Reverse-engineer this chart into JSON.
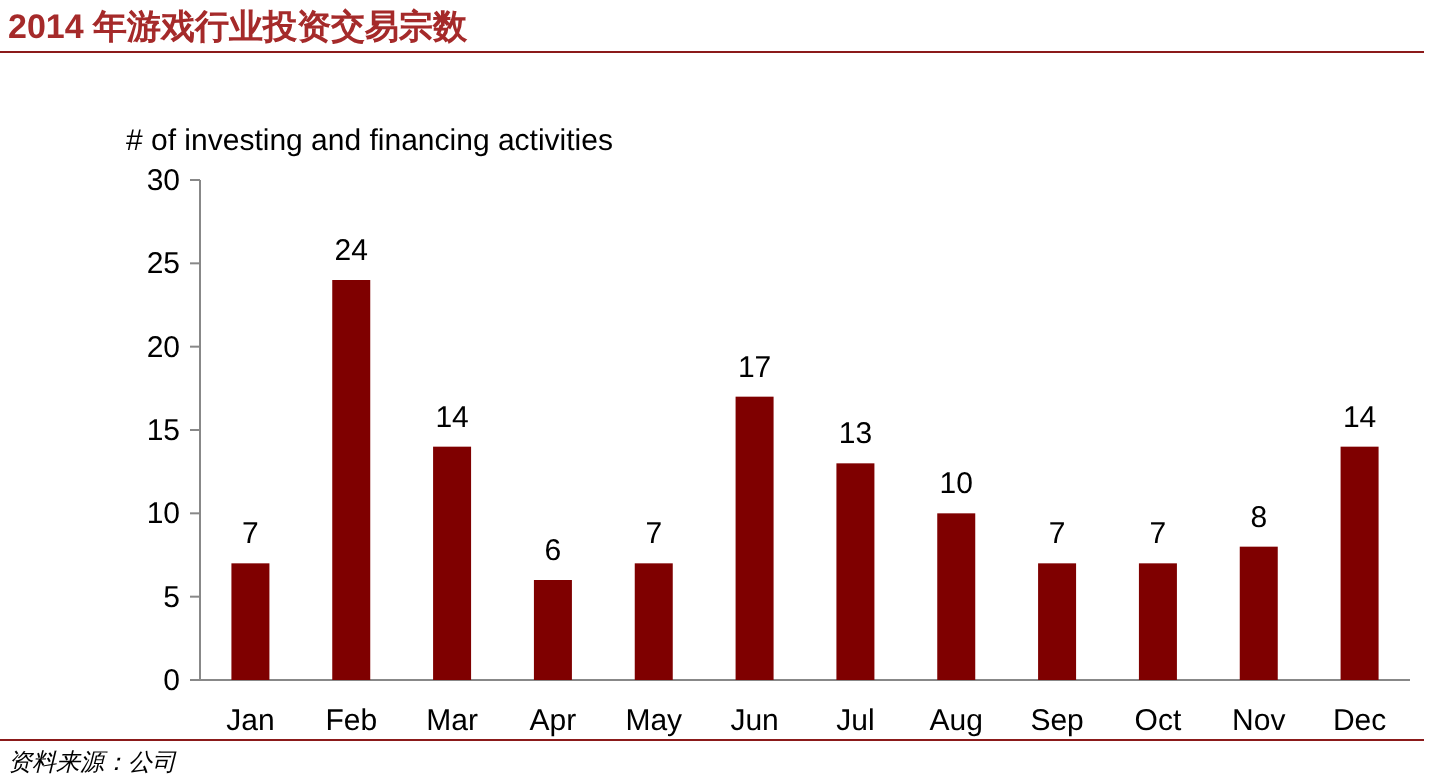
{
  "chart_data": {
    "type": "bar",
    "title": "2014 年游戏行业投资交易宗数",
    "ylabel": "# of investing and financing activities",
    "categories": [
      "Jan",
      "Feb",
      "Mar",
      "Apr",
      "May",
      "Jun",
      "Jul",
      "Aug",
      "Sep",
      "Oct",
      "Nov",
      "Dec"
    ],
    "values": [
      7,
      24,
      14,
      6,
      7,
      17,
      13,
      10,
      7,
      7,
      8,
      14
    ],
    "color": "#7f0000",
    "ylim": [
      0,
      30
    ],
    "yticks": [
      0,
      5,
      10,
      15,
      20,
      25,
      30
    ],
    "data_labels": true,
    "annotations": [
      "资料来源：公司"
    ]
  }
}
